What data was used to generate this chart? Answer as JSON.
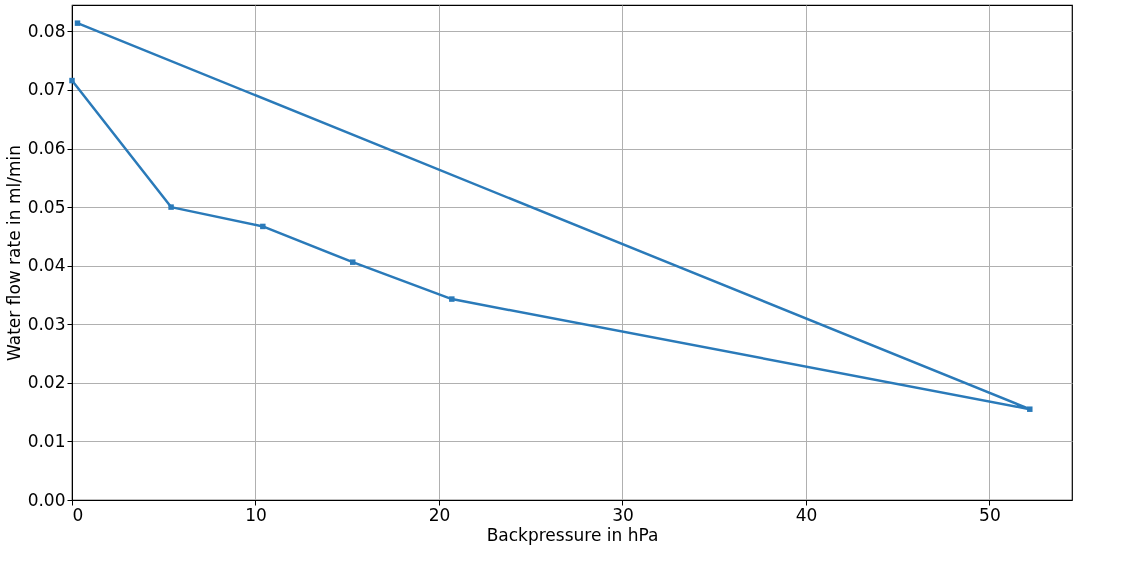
{
  "chart_data": {
    "type": "line",
    "xlabel": "Backpressure in hPa",
    "ylabel": "Water flow rate in ml/min",
    "series": [
      {
        "color": "#2a7ab9",
        "x": [
          0.3,
          52.2,
          20.7,
          15.3,
          10.4,
          5.4,
          0
        ],
        "values": [
          0.0814,
          0.0155,
          0.0343,
          0.0406,
          0.0467,
          0.05,
          0.0716
        ]
      }
    ],
    "xlim": [
      0,
      54.5
    ],
    "ylim": [
      0,
      0.0845
    ],
    "xticks": [
      0,
      10,
      20,
      30,
      40,
      50
    ],
    "yticks": [
      {
        "value": 0,
        "label": "0.00"
      },
      {
        "value": 0.01,
        "label": "0.01"
      },
      {
        "value": 0.02,
        "label": "0.02"
      },
      {
        "value": 0.03,
        "label": "0.03"
      },
      {
        "value": 0.04,
        "label": "0.04"
      },
      {
        "value": 0.05,
        "label": "0.05"
      },
      {
        "value": 0.06,
        "label": "0.06"
      },
      {
        "value": 0.07,
        "label": "0.07"
      },
      {
        "value": 0.08,
        "label": "0.08"
      }
    ],
    "grid": true,
    "marker": "square",
    "line_style": "solid"
  }
}
